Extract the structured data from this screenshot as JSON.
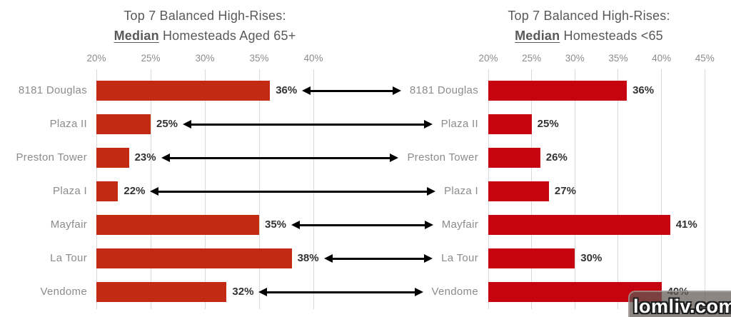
{
  "colors": {
    "left_bar": "#c32a13",
    "right_bar": "#c50410",
    "grid": "#d9d9d9",
    "title_text": "#595959",
    "axis_label": "#8c8c8c",
    "category_label": "#8c8c8c",
    "value_label": "#333333",
    "arrow": "#000000",
    "watermark_bg": "rgba(95,88,83,0.72)",
    "watermark_text": "#ffffff"
  },
  "watermark": {
    "text": "lomliv.com"
  },
  "chart_data": [
    {
      "type": "bar",
      "orientation": "horizontal",
      "title": "Top 7 Balanced High-Rises: Median Homesteads Aged 65+",
      "title_line1": "Top 7 Balanced High-Rises:",
      "title_emphasis": "Median",
      "title_rest": " Homesteads Aged 65+",
      "categories": [
        "8181 Douglas",
        "Plaza II",
        "Preston Tower",
        "Plaza I",
        "Mayfair",
        "La Tour",
        "Vendome"
      ],
      "values": [
        36,
        25,
        23,
        22,
        35,
        38,
        32
      ],
      "value_labels": [
        "36%",
        "25%",
        "23%",
        "22%",
        "35%",
        "38%",
        "32%"
      ],
      "axis_ticks": [
        "20%",
        "25%",
        "30%",
        "35%",
        "40%"
      ],
      "xlim": [
        20,
        42
      ],
      "grid": true,
      "legend": false,
      "xlabel": "",
      "ylabel": ""
    },
    {
      "type": "bar",
      "orientation": "horizontal",
      "title": "Top 7 Balanced High-Rises: Median Homesteads <65",
      "title_line1": "Top 7 Balanced High-Rises:",
      "title_emphasis": "Median",
      "title_rest": " Homesteads <65",
      "categories": [
        "8181 Douglas",
        "Plaza II",
        "Preston Tower",
        "Plaza I",
        "Mayfair",
        "La Tour",
        "Vendome"
      ],
      "values": [
        36,
        25,
        26,
        27,
        41,
        30,
        40
      ],
      "value_labels": [
        "36%",
        "25%",
        "26%",
        "27%",
        "41%",
        "30%",
        "40%"
      ],
      "axis_ticks": [
        "20%",
        "25%",
        "30%",
        "35%",
        "40%",
        "45%"
      ],
      "xlim": [
        20,
        46
      ],
      "grid": true,
      "legend": false,
      "xlabel": "",
      "ylabel": ""
    }
  ],
  "connectors": {
    "style": "double-headed-arrow",
    "description": "arrows link each left-chart value to the matching category of the right chart",
    "rows": [
      "8181 Douglas",
      "Plaza II",
      "Preston Tower",
      "Plaza I",
      "Mayfair",
      "La Tour",
      "Vendome"
    ]
  }
}
